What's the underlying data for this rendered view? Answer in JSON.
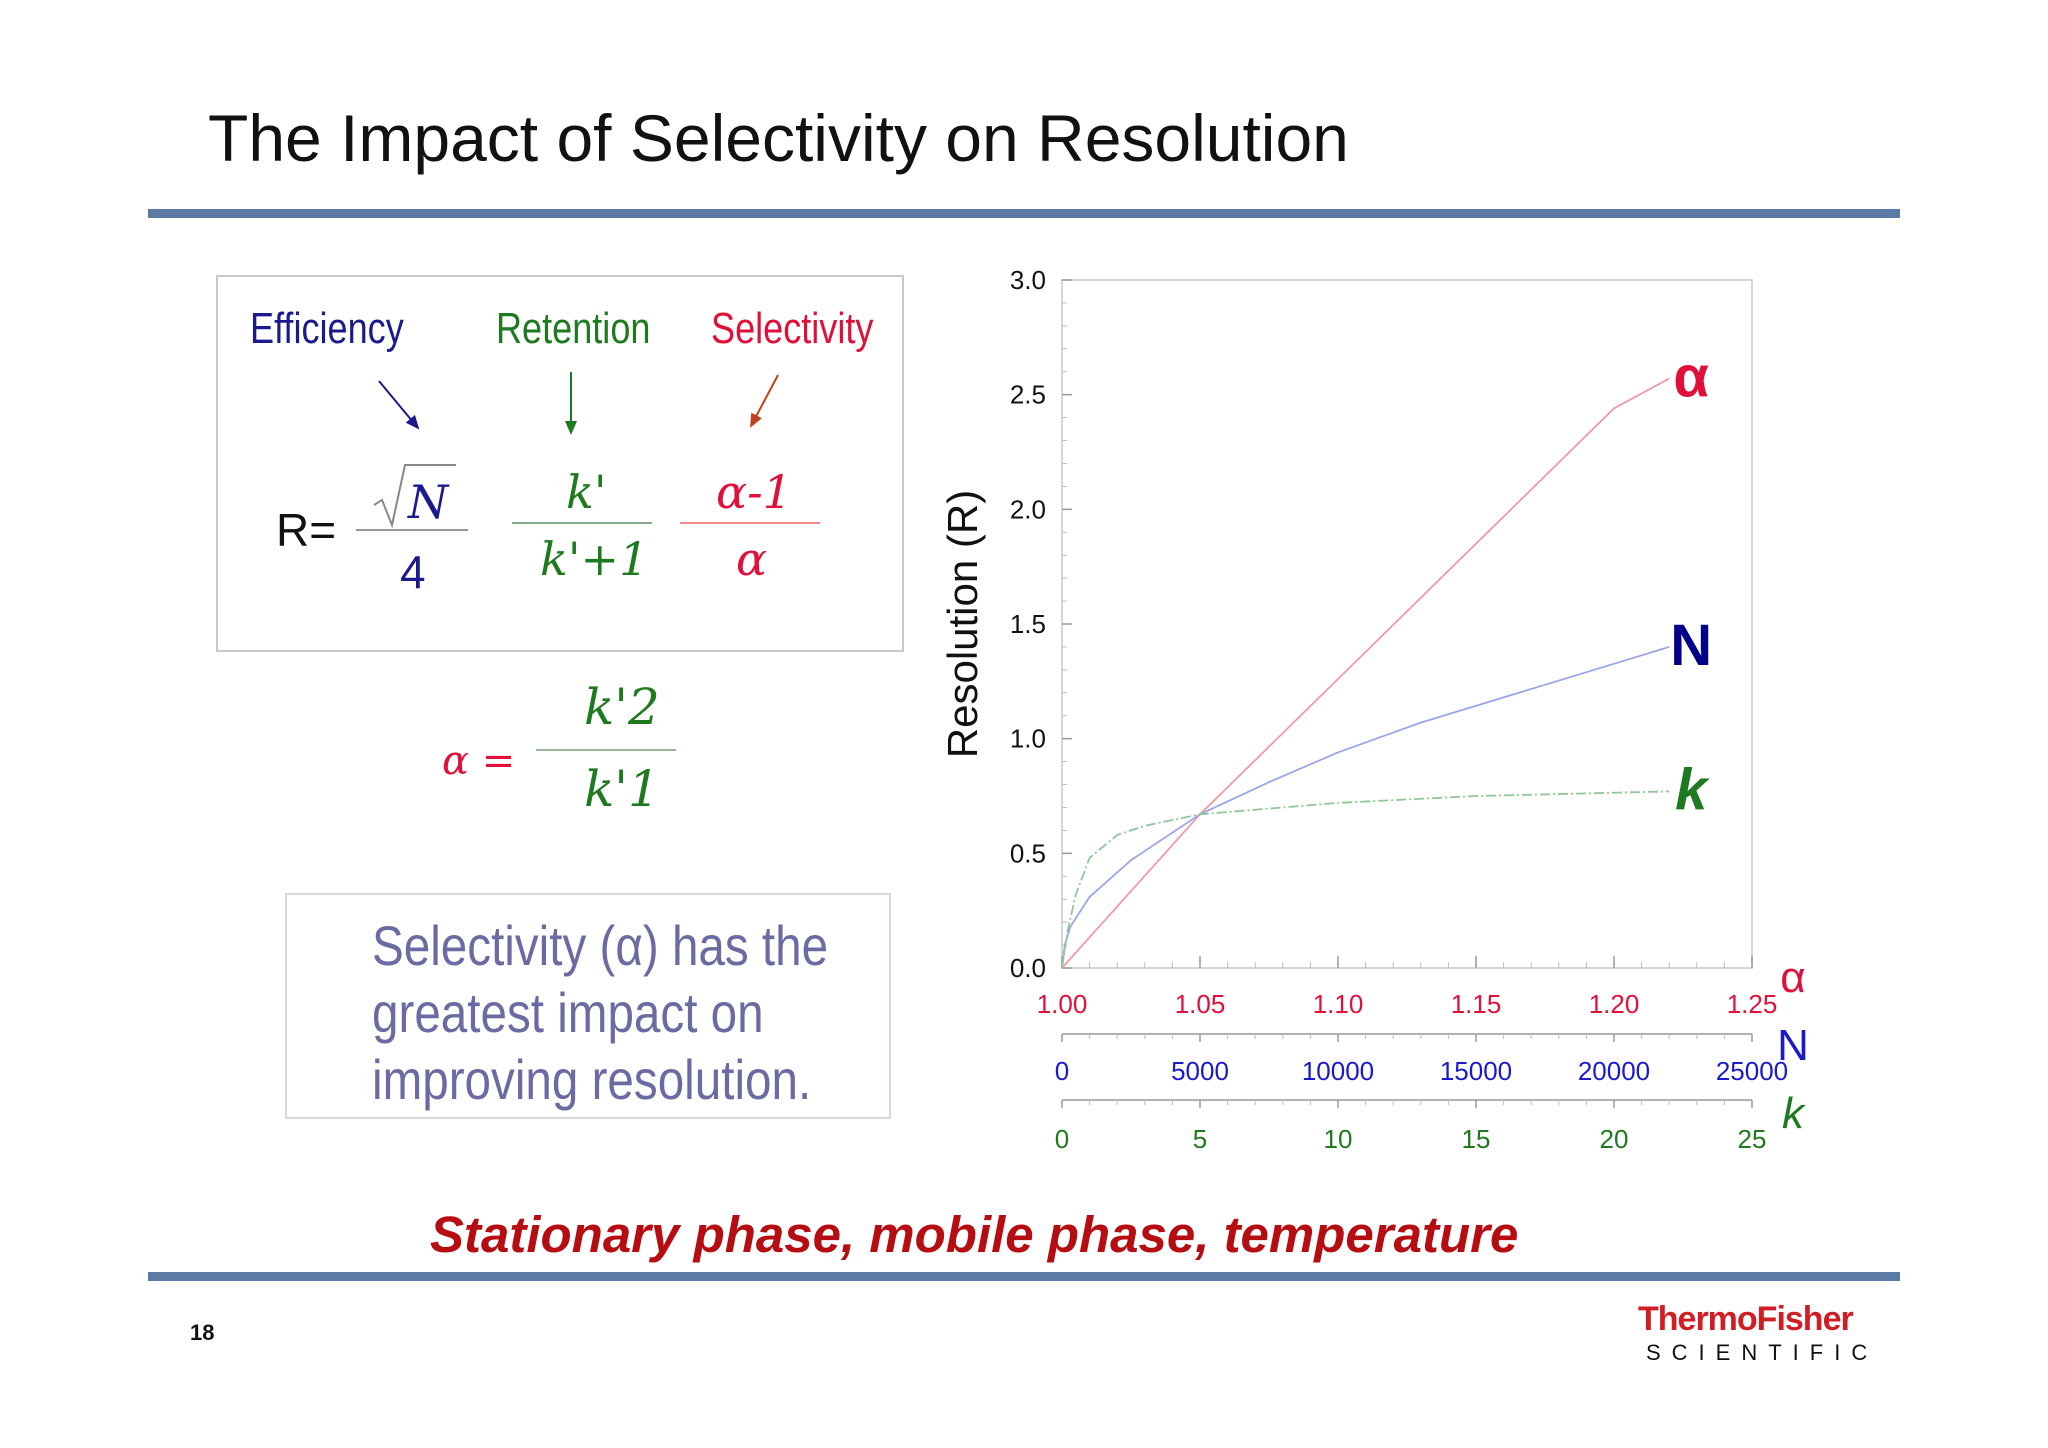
{
  "slide": {
    "title": "The Impact of Selectivity on Resolution",
    "page_number": "18",
    "footer": "Stationary phase, mobile phase, temperature",
    "logo": {
      "line1": "ThermoFisher",
      "line2": "SCIENTIFIC"
    }
  },
  "formula": {
    "labels": {
      "efficiency": "Efficiency",
      "retention": "Retention",
      "selectivity": "Selectivity"
    },
    "lhs": "R=",
    "efficiency_num": "N",
    "efficiency_den": "4",
    "retention_num": "k'",
    "retention_den": "k'+1",
    "selectivity_num": "α-1",
    "selectivity_den": "α",
    "alpha_lhs": "α =",
    "alpha_num": "k'2",
    "alpha_den": "k'1"
  },
  "note": "Selectivity (α) has the greatest impact on improving resolution.",
  "colors": {
    "efficiency": "#1a1a8c",
    "retention": "#1f7a1f",
    "selectivity": "#e0103a",
    "alpha_curve": "#f09aa8",
    "n_curve": "#9aa6e6",
    "k_curve": "#8fc79a"
  },
  "chart_data": {
    "type": "line",
    "ylabel": "Resolution (R)",
    "ylim": [
      0,
      3.0
    ],
    "yticks": [
      "0.0",
      "0.5",
      "1.0",
      "1.5",
      "2.0",
      "2.5",
      "3.0"
    ],
    "x_axes": [
      {
        "name": "α",
        "ticks": [
          "1.00",
          "1.05",
          "1.10",
          "1.15",
          "1.20",
          "1.25"
        ],
        "color": "#e0103a"
      },
      {
        "name": "N",
        "ticks": [
          "0",
          "5000",
          "10000",
          "15000",
          "20000",
          "25000"
        ],
        "color": "#1a1acc"
      },
      {
        "name": "k",
        "ticks": [
          "0",
          "5",
          "10",
          "15",
          "20",
          "25"
        ],
        "color": "#1f7a1f"
      }
    ],
    "series": [
      {
        "name": "α",
        "color": "#e0103a",
        "x": [
          1.0,
          1.05,
          1.1,
          1.15,
          1.2,
          1.22
        ],
        "y": [
          0.0,
          0.67,
          1.26,
          1.85,
          2.44,
          2.57
        ]
      },
      {
        "name": "N",
        "color": "#00008b",
        "x": [
          0,
          100,
          300,
          1000,
          2500,
          5000,
          7500,
          10000,
          13000,
          16000,
          19000,
          22000
        ],
        "y": [
          0.0,
          0.1,
          0.18,
          0.31,
          0.47,
          0.67,
          0.81,
          0.94,
          1.07,
          1.18,
          1.29,
          1.4
        ]
      },
      {
        "name": "k",
        "color": "#1f7a1f",
        "x": [
          0,
          0.2,
          0.5,
          1,
          2,
          3,
          5,
          10,
          15,
          22
        ],
        "y": [
          0.0,
          0.16,
          0.32,
          0.48,
          0.58,
          0.62,
          0.67,
          0.72,
          0.75,
          0.77
        ]
      }
    ],
    "series_labels": [
      "α",
      "N",
      "k"
    ]
  }
}
